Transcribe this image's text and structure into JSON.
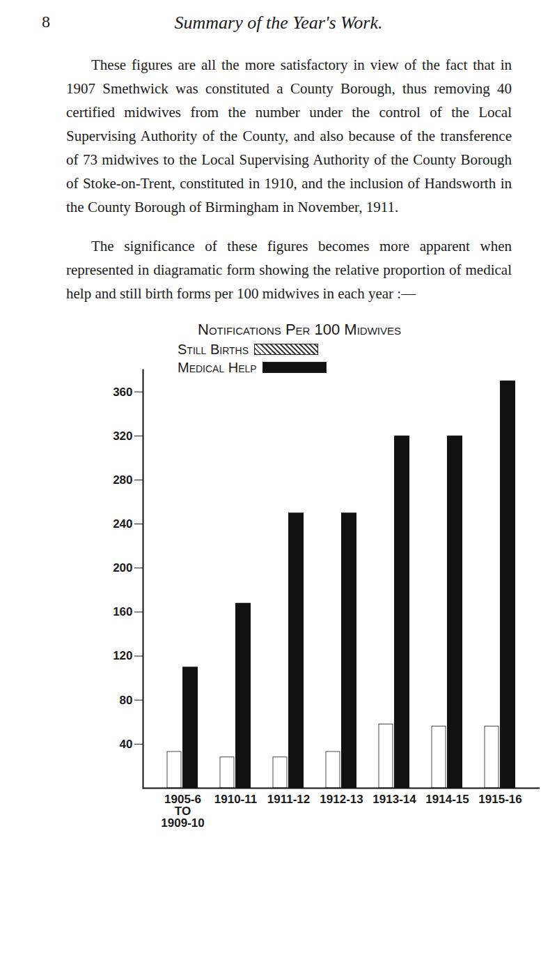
{
  "header": {
    "page_number": "8",
    "title": "Summary of the Year's Work."
  },
  "paragraphs": [
    "These figures are all the more satisfactory in view of the fact that in 1907 Smethwick was constituted a County Borough, thus removing 40 certified midwives from the number under the control of the Local Supervising Authority of the County, and also because of the transference of 73 midwives to the Local Supervising Authority of the County Borough of Stoke-on-Trent, constituted in 1910, and the inclusion of Handsworth in the County Borough of Birmingham in November, 1911.",
    "The significance of these figures becomes more apparent when represented in diagramatic form showing the relative proportion of medical help and still birth forms per 100 midwives in each year :—"
  ],
  "chart_data": {
    "type": "bar",
    "title": "Notifications Per 100 Midwives",
    "categories": [
      "1905-6\nTO\n1909-10",
      "1910-11",
      "1911-12",
      "1912-13",
      "1913-14",
      "1914-15",
      "1915-16"
    ],
    "series": [
      {
        "name": "Still Births",
        "color": "#444444",
        "values": [
          33,
          28,
          28,
          33,
          58,
          56,
          56
        ]
      },
      {
        "name": "Medical Help",
        "color": "#111111",
        "values": [
          110,
          168,
          250,
          250,
          320,
          320,
          370
        ]
      }
    ],
    "ylim": [
      0,
      380
    ],
    "yticks": [
      40,
      80,
      120,
      160,
      200,
      240,
      280,
      320,
      360
    ],
    "grid": false
  }
}
